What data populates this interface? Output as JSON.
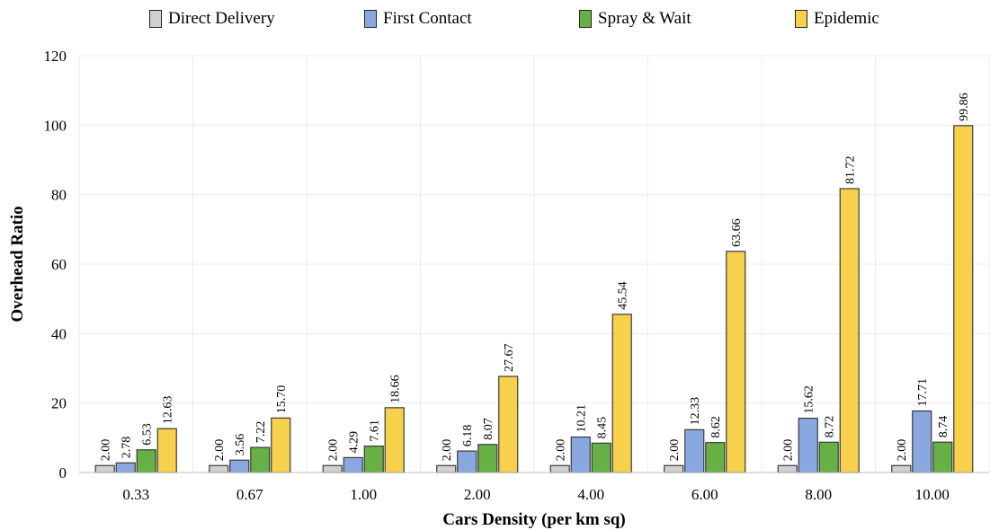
{
  "chart_data": {
    "type": "bar",
    "title": "",
    "xlabel": "Cars Density (per km sq)",
    "ylabel": "Overhead Ratio",
    "ylim": [
      0,
      120
    ],
    "yticks": [
      0,
      20,
      40,
      60,
      80,
      100,
      120
    ],
    "grid": true,
    "legend_position": "top",
    "categories": [
      "0.33",
      "0.67",
      "1.00",
      "2.00",
      "4.00",
      "6.00",
      "8.00",
      "10.00"
    ],
    "series": [
      {
        "name": "Direct Delivery",
        "color": "#d0d0d0",
        "values": [
          2.0,
          2.0,
          2.0,
          2.0,
          2.0,
          2.0,
          2.0,
          2.0
        ],
        "labels": [
          "2.00",
          "2.00",
          "2.00",
          "2.00",
          "2.00",
          "2.00",
          "2.00",
          "2.00"
        ]
      },
      {
        "name": "First Contact",
        "color": "#8aa8e0",
        "values": [
          2.78,
          3.56,
          4.29,
          6.18,
          10.21,
          12.33,
          15.62,
          17.71
        ],
        "labels": [
          "2.78",
          "3.56",
          "4.29",
          "6.18",
          "10.21",
          "12.33",
          "15.62",
          "17.71"
        ]
      },
      {
        "name": "Spray & Wait",
        "color": "#66b045",
        "values": [
          6.53,
          7.22,
          7.61,
          8.07,
          8.45,
          8.62,
          8.72,
          8.74
        ],
        "labels": [
          "6.53",
          "7.22",
          "7.61",
          "8.07",
          "8.45",
          "8.62",
          "8.72",
          "8.74"
        ]
      },
      {
        "name": "Epidemic",
        "color": "#f7d04c",
        "values": [
          12.63,
          15.7,
          18.66,
          27.67,
          45.54,
          63.66,
          81.72,
          99.86
        ],
        "labels": [
          "12.63",
          "15.70",
          "18.66",
          "27.67",
          "45.54",
          "63.66",
          "81.72",
          "99.86"
        ]
      }
    ]
  }
}
